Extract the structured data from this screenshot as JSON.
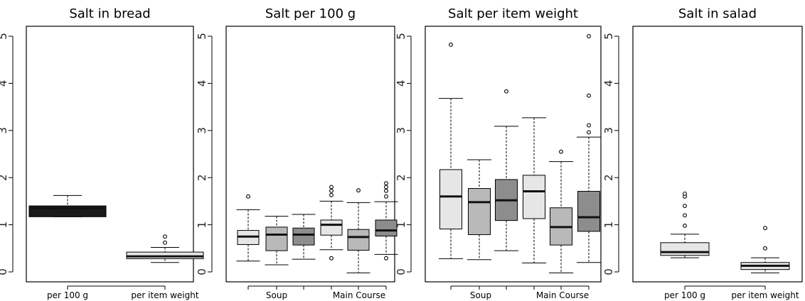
{
  "colors": {
    "light": "#e6e6e6",
    "mid": "#b9b9b9",
    "dark": "#8d8d8d",
    "black": "#1a1a1a"
  },
  "chart_data": [
    {
      "type": "box",
      "title": "Salt in bread",
      "ylim": [
        0,
        5
      ],
      "yticks": [
        "0",
        "1",
        "2",
        "3",
        "4",
        "5"
      ],
      "xtick_labels": [
        "per 100 g",
        "per item weight"
      ],
      "grid": false,
      "boxes": [
        {
          "group": "per 100 g",
          "color": "black",
          "min": 1.17,
          "q1": 1.17,
          "median": 1.35,
          "q3": 1.4,
          "max": 1.62,
          "outliers": []
        },
        {
          "group": "per item weight",
          "color": "light",
          "min": 0.2,
          "q1": 0.28,
          "median": 0.33,
          "q3": 0.42,
          "max": 0.52,
          "outliers": [
            0.62,
            0.75
          ]
        }
      ]
    },
    {
      "type": "box",
      "title": "Salt per 100 g",
      "ylim": [
        0,
        5
      ],
      "yticks": [
        "0",
        "1",
        "2",
        "3",
        "4",
        "5"
      ],
      "xtick_labels": [
        "Soup",
        "Main Course"
      ],
      "grid": false,
      "boxes": [
        {
          "group": "Soup",
          "color": "light",
          "min": 0.23,
          "q1": 0.58,
          "median": 0.75,
          "q3": 0.88,
          "max": 1.32,
          "outliers": [
            1.6
          ]
        },
        {
          "group": "Soup",
          "color": "mid",
          "min": 0.15,
          "q1": 0.45,
          "median": 0.79,
          "q3": 0.95,
          "max": 1.18,
          "outliers": []
        },
        {
          "group": "Soup",
          "color": "dark",
          "min": 0.27,
          "q1": 0.57,
          "median": 0.79,
          "q3": 0.93,
          "max": 1.22,
          "outliers": []
        },
        {
          "group": "Main Course",
          "color": "light",
          "min": 0.47,
          "q1": 0.78,
          "median": 1.0,
          "q3": 1.1,
          "max": 1.5,
          "outliers": [
            0.29,
            1.63,
            1.72,
            1.8
          ]
        },
        {
          "group": "Main Course",
          "color": "mid",
          "min": -0.02,
          "q1": 0.46,
          "median": 0.74,
          "q3": 0.9,
          "max": 1.47,
          "outliers": [
            1.73
          ]
        },
        {
          "group": "Main Course",
          "color": "dark",
          "min": 0.37,
          "q1": 0.76,
          "median": 0.88,
          "q3": 1.1,
          "max": 1.49,
          "outliers": [
            0.29,
            1.6,
            1.72,
            1.8,
            1.88
          ]
        }
      ]
    },
    {
      "type": "box",
      "title": "Salt per item weight",
      "ylim": [
        0,
        5
      ],
      "yticks": [
        "0",
        "1",
        "2",
        "3",
        "4",
        "5"
      ],
      "xtick_labels": [
        "Soup",
        "Main Course"
      ],
      "grid": false,
      "boxes": [
        {
          "group": "Soup",
          "color": "light",
          "min": 0.28,
          "q1": 0.91,
          "median": 1.6,
          "q3": 2.17,
          "max": 3.68,
          "outliers": [
            4.82
          ]
        },
        {
          "group": "Soup",
          "color": "mid",
          "min": 0.26,
          "q1": 0.79,
          "median": 1.48,
          "q3": 1.77,
          "max": 2.38,
          "outliers": []
        },
        {
          "group": "Soup",
          "color": "dark",
          "min": 0.45,
          "q1": 1.09,
          "median": 1.52,
          "q3": 1.96,
          "max": 3.09,
          "outliers": [
            3.83
          ]
        },
        {
          "group": "Main Course",
          "color": "light",
          "min": 0.19,
          "q1": 1.13,
          "median": 1.71,
          "q3": 2.05,
          "max": 3.27,
          "outliers": []
        },
        {
          "group": "Main Course",
          "color": "mid",
          "min": -0.02,
          "q1": 0.57,
          "median": 0.95,
          "q3": 1.36,
          "max": 2.34,
          "outliers": [
            2.55
          ]
        },
        {
          "group": "Main Course",
          "color": "dark",
          "min": 0.2,
          "q1": 0.86,
          "median": 1.16,
          "q3": 1.71,
          "max": 2.86,
          "outliers": [
            2.96,
            3.11,
            3.74,
            5.0
          ]
        }
      ]
    },
    {
      "type": "box",
      "title": "Salt in salad",
      "ylim": [
        0,
        5
      ],
      "yticks": [
        "0",
        "1",
        "2",
        "3",
        "4",
        "5"
      ],
      "xtick_labels": [
        "per 100 g",
        "per item weight"
      ],
      "grid": false,
      "boxes": [
        {
          "group": "per 100 g",
          "color": "light",
          "min": 0.3,
          "q1": 0.35,
          "median": 0.42,
          "q3": 0.62,
          "max": 0.8,
          "outliers": [
            0.98,
            1.2,
            1.4,
            1.6,
            1.66
          ]
        },
        {
          "group": "per item weight",
          "color": "light",
          "min": -0.02,
          "q1": 0.05,
          "median": 0.13,
          "q3": 0.2,
          "max": 0.3,
          "outliers": [
            0.5,
            0.93
          ]
        }
      ]
    }
  ]
}
